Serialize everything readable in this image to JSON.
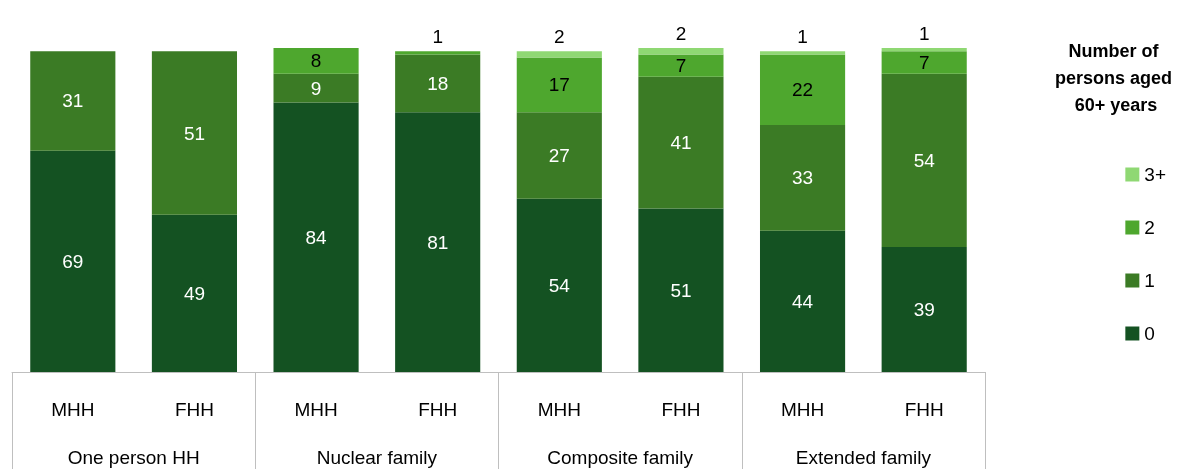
{
  "chart_data": {
    "type": "bar",
    "stacked": true,
    "data_labels": true,
    "legend": "right",
    "legend_title": "Number of persons aged 60+ years",
    "categories": [
      "MHH",
      "FHH",
      "MHH",
      "FHH",
      "MHH",
      "FHH",
      "MHH",
      "FHH"
    ],
    "annotations": [
      "One person HH",
      "Nuclear family",
      "Composite family",
      "Extended family"
    ],
    "series": [
      {
        "name": "0",
        "color": "#145222",
        "values": [
          69,
          49,
          84,
          81,
          54,
          51,
          44,
          39
        ]
      },
      {
        "name": "1",
        "color": "#3b7b25",
        "values": [
          31,
          51,
          9,
          18,
          27,
          41,
          33,
          54
        ]
      },
      {
        "name": "2",
        "color": "#4ea72e",
        "values": [
          null,
          null,
          8,
          1,
          17,
          7,
          22,
          7
        ]
      },
      {
        "name": "3+",
        "color": "#8fd873",
        "values": [
          null,
          null,
          null,
          null,
          2,
          2,
          1,
          1
        ]
      }
    ]
  }
}
